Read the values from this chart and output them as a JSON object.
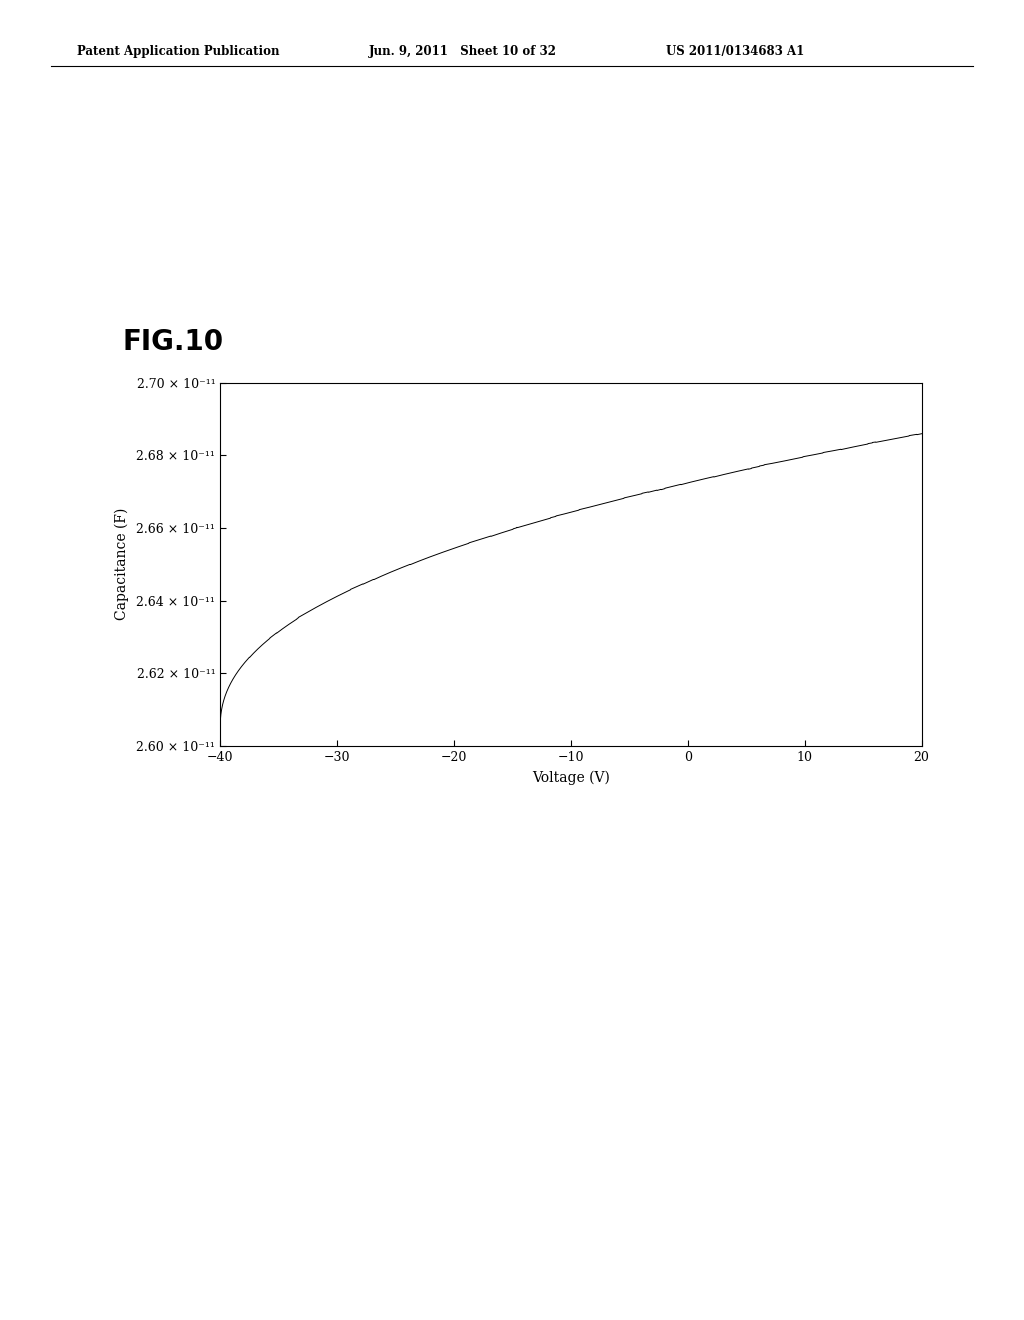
{
  "header_left": "Patent Application Publication",
  "header_mid": "Jun. 9, 2011   Sheet 10 of 32",
  "header_right": "US 2011/0134683 A1",
  "fig_label": "FIG.10",
  "xlabel": "Voltage (V)",
  "ylabel": "Capacitance (F)",
  "xlim": [
    -40,
    20
  ],
  "ylim": [
    2.6e-11,
    2.7e-11
  ],
  "xticks": [
    -40,
    -30,
    -20,
    -10,
    0,
    10,
    20
  ],
  "yticks": [
    2.6e-11,
    2.62e-11,
    2.64e-11,
    2.66e-11,
    2.68e-11,
    2.7e-11
  ],
  "background_color": "#ffffff",
  "line_color": "#000000",
  "curve_start_y": 2.605e-11,
  "curve_end_y": 2.686e-11
}
